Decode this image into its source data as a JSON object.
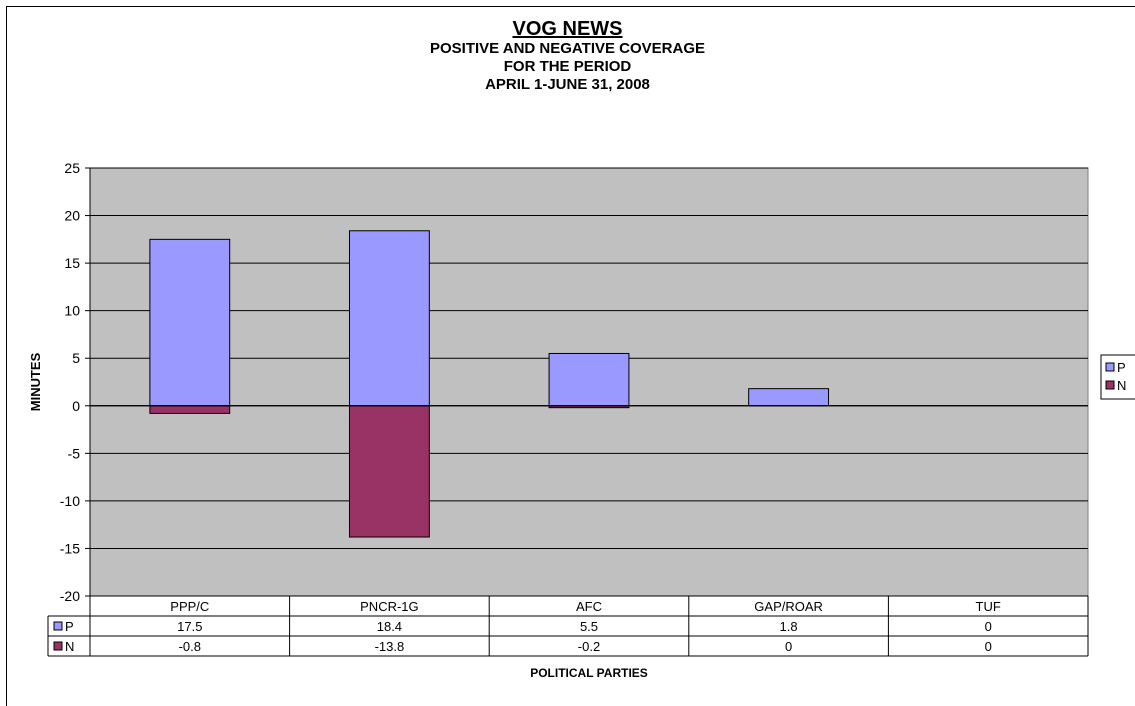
{
  "chart_data": {
    "type": "bar",
    "title": "VOG NEWS",
    "subtitle_lines": [
      "POSITIVE AND NEGATIVE COVERAGE",
      "FOR THE PERIOD",
      "APRIL 1-JUNE 31, 2008"
    ],
    "xlabel": "POLITICAL PARTIES",
    "ylabel": "MINUTES",
    "categories": [
      "PPP/C",
      "PNCR-1G",
      "AFC",
      "GAP/ROAR",
      "TUF"
    ],
    "series": [
      {
        "name": "P",
        "values": [
          17.5,
          18.4,
          5.5,
          1.8,
          0
        ],
        "color": "#9999FF",
        "display": [
          "17.5",
          "18.4",
          "5.5",
          "1.8",
          "0"
        ]
      },
      {
        "name": "N",
        "values": [
          -0.8,
          -13.8,
          -0.2,
          0,
          0
        ],
        "color": "#993366",
        "display": [
          "-0.8",
          "-13.8",
          "-0.2",
          "0",
          "0"
        ]
      }
    ],
    "ylim": [
      -20,
      25
    ],
    "yticks": [
      -20,
      -15,
      -10,
      -5,
      0,
      5,
      10,
      15,
      20,
      25
    ],
    "grid": true,
    "plot_background": "#C0C0C0",
    "legend": "right",
    "data_table": true
  }
}
